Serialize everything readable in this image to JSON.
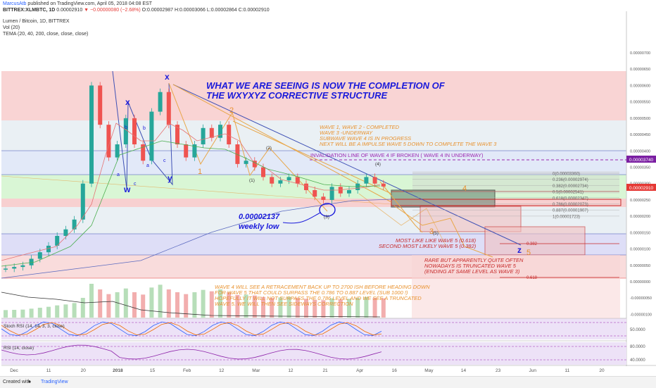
{
  "header": {
    "author": "MarcusAtb",
    "published": "published on TradingView.com, April 05, 2018 04:08 EST",
    "symbol": "BITTREX:XLMBTC, 1D",
    "price": "0.00002910",
    "change": "▼ −0.00000080 (−2.68%)",
    "ohlc": "O:0.00002987 H:0.00003066 L:0.00002864 C:0.00002910",
    "instrument": "Lumen / Bitcoin, 1D, BITTREX",
    "vol": "Vol (20)",
    "tema": "TEMA (20, 40, 200, close, close, close)"
  },
  "footer": {
    "created_with": "Created with",
    "brand": "TradingView"
  },
  "chart_data": {
    "type": "line",
    "series": [
      {
        "values": [
          4e-07,
          4.5e-07,
          5e-07,
          7e-07,
          9e-07,
          1.1e-06,
          1.4e-06,
          1.6e-06,
          1.9e-06,
          3e-06,
          6e-06,
          4.8e-06,
          3.8e-06,
          4.2e-06,
          5e-06,
          4.2e-06,
          3.7e-06,
          5.2e-06,
          5.8e-06,
          4.8e-06,
          4.2e-06,
          3.8e-06,
          4.2e-06,
          4.7e-06,
          4.4e-06,
          4.8e-06,
          4.2e-06,
          3.6e-06,
          3.7e-06,
          3.5e-06,
          3.2e-06,
          3e-06,
          3.1e-06,
          3.2e-06,
          3e-06,
          2.8e-06,
          2.6e-06,
          2.5e-06,
          2.9e-06,
          2.7e-06,
          2.8e-06,
          3e-06,
          3.2e-06,
          3e-06,
          2.91e-06
        ]
      }
    ],
    "x_ticks": [
      "Dec",
      "11",
      "20",
      "2018",
      "15",
      "Feb",
      "12",
      "Mar",
      "12",
      "21",
      "Apr",
      "16",
      "May",
      "14",
      "23",
      "Jun",
      "11",
      "20"
    ],
    "y_ticks": [
      "0.00000700",
      "0.00000650",
      "0.00000600",
      "0.00000550",
      "0.00000500",
      "0.00000450",
      "0.00000400",
      "0.00000350",
      "0.00000300",
      "0.00000250",
      "0.00000200",
      "0.00000150",
      "0.00000100",
      "0.00000050",
      "0.00000000",
      "-0.00000050",
      "-0.00000100"
    ],
    "price_tags": [
      {
        "label": "0.00003740",
        "value": 3.74e-06,
        "color": "#7b1fa2"
      },
      {
        "label": "0.00002910",
        "value": 2.91e-06,
        "color": "#e53935"
      }
    ],
    "fib_levels": [
      {
        "label": "0(0.00003360)",
        "value": 3.36e-06
      },
      {
        "label": "0.236(0.00002974)",
        "value": 2.97e-06
      },
      {
        "label": "0.382(0.00002734)",
        "value": 2.73e-06
      },
      {
        "label": "0.5(0.00002541)",
        "value": 2.54e-06
      },
      {
        "label": "0.618(0.00002347)",
        "value": 2.35e-06
      },
      {
        "label": "0.786(0.00002073)",
        "value": 2.07e-06
      },
      {
        "label": "0.887(0.00001907)",
        "value": 1.91e-06
      },
      {
        "label": "1(0.00001723)",
        "value": 1.72e-06
      }
    ],
    "labels_wave": {
      "w": "w",
      "x1": "x",
      "y": "y",
      "x2": "x",
      "z": "z",
      "a1": "a",
      "b1": "b",
      "c1": "c",
      "a2": "a",
      "b2": "b",
      "c2": "c",
      "one": "1",
      "two": "2",
      "three": "3",
      "four": "4",
      "five": "5",
      "p1": "(1)",
      "p2": "(2)",
      "p3": "(3)",
      "p4": "(4)",
      "p5": "(5)"
    },
    "annotations": {
      "headline1": "WHAT WE ARE SEEING IS NOW THE COMPLETION OF",
      "headline2": "THE WXYXYZ CORRECTIVE STRUCTURE",
      "status1": "WAVE 1, WAVE 2 - COMPLETED",
      "status2": "WAVE 3 -UNDERWAY",
      "status3": "SUBWAVE WAVE 4 IS IN PROGRESS",
      "status4": "NEXT WILL BE A IMPULSE WAVE 5 DOWN TO COMPLETE THE WAVE 3",
      "invalidation": "INVALIDATION LINE OF WAVE 4 IF BROKEN ( WAVE 4 IN UNDERWAY)",
      "weekly_low_value": "0.00002137",
      "weekly_low": "weekly low",
      "like1": "MOST LIKE LIKE WAVE 5 (0.618)",
      "like2": "SECOND MOST LIKELY WAVE 5 (0.382)",
      "rare1": "RARE BUT APPARENTLY QUITE OFTEN",
      "rare2": "NOWADAYS IS TRUNCATED WAVE 5",
      "rare3": "(ENDING AT SAME LEVEL AS WAVE 3)",
      "retr1": "WAVE 4 WILL SEE A RETRACEMENT BACK UP TO 2700 ISH BEFORE HEADING DOWN",
      "retr2": "FOR WAVE 5 THAT COULD SURPASS THE 0.786 TO 0.887 LEVEL (SUB 1000 !)",
      "retr3": "HOPEFULLY IT WILL NOT SURPASS THE 0.786 LEVEL AND WE SEE A TRUNCATED",
      "retr4": "WAVE 5. WE WILL THEN SEE SIDEWAYS CORRECTION",
      "lvl_382": "0.382",
      "lvl_618": "0.618"
    },
    "stoch": {
      "title": "Stoch RSI (14, 14, 3, 3, close)",
      "tick": "50.0000"
    },
    "rsi": {
      "title": "RSI (14, close)",
      "tick_hi": "80.0000",
      "tick_lo": "40.0000"
    },
    "colors": {
      "up": "#26a69a",
      "down": "#ef5350",
      "headline": "#1a1adb",
      "orange": "#e8912d",
      "purple": "#9c27b0",
      "blue": "#5c6bc0",
      "red": "#c62828"
    }
  }
}
